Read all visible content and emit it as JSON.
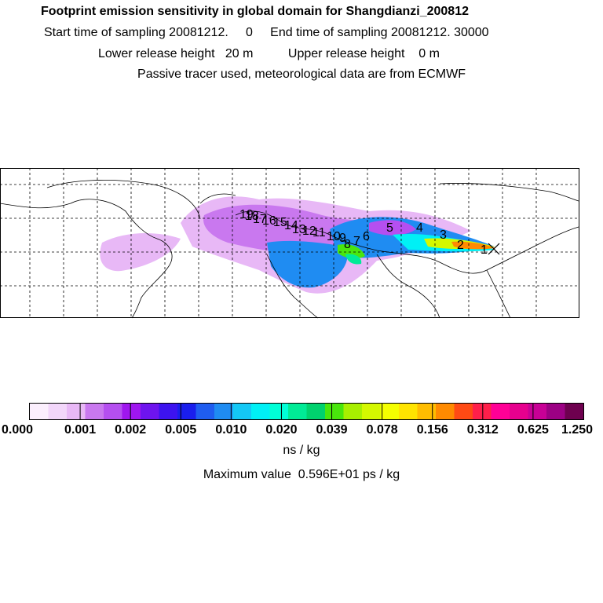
{
  "header": {
    "title": "Footprint emission sensitivity in global domain for Shangdianzi_200812",
    "sampling_times": "Start time of sampling 20081212.     0     End time of sampling 20081212. 30000",
    "release_heights": "Lower release height   20 m          Upper release height    0 m",
    "tracer_note": "Passive tracer used, meteorological data are from ECMWF"
  },
  "map": {
    "station_marker": "receptor-cross",
    "trajectory_labels": [
      "1",
      "2",
      "3",
      "4",
      "5",
      "6",
      "7",
      "8",
      "9",
      "10",
      "11",
      "12",
      "13",
      "14",
      "15",
      "16",
      "17",
      "18",
      "19"
    ]
  },
  "colorbar": {
    "tick_labels": [
      "0.000",
      "0.001",
      "0.002",
      "0.005",
      "0.010",
      "0.020",
      "0.039",
      "0.078",
      "0.156",
      "0.312",
      "0.625",
      "1.250"
    ],
    "colors": [
      "#fbeffd",
      "#f2d6fa",
      "#e8b8f6",
      "#c978ef",
      "#b54ff0",
      "#9f16ef",
      "#6e14ee",
      "#3d13ef",
      "#1a1eed",
      "#1f5df0",
      "#1f8cf2",
      "#14c8f5",
      "#00f0f5",
      "#00ffd7",
      "#00eb96",
      "#00d26e",
      "#49e60c",
      "#a8ef00",
      "#d4f800",
      "#f5ff00",
      "#ffe400",
      "#ffbd00",
      "#ff8a00",
      "#ff4a14",
      "#ff1f4a",
      "#ff0096",
      "#e6008e",
      "#c80096",
      "#9c0084",
      "#6e004f"
    ],
    "unit": "ns / kg",
    "max_value_text": "Maximum value  0.596E+01 ps / kg"
  }
}
